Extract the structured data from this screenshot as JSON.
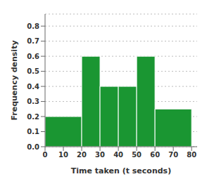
{
  "chart_data": {
    "type": "histogram",
    "bins": [
      0,
      20,
      30,
      40,
      50,
      60,
      80
    ],
    "values": [
      0.2,
      0.6,
      0.4,
      0.4,
      0.6,
      0.25
    ],
    "color": "#1a9632",
    "xlabel": "Time taken (t seconds)",
    "ylabel": "Frequency density",
    "xlim": [
      0,
      83
    ],
    "ylim": [
      0,
      0.88
    ],
    "xticks": [
      0,
      10,
      20,
      30,
      40,
      50,
      60,
      70,
      80
    ],
    "yticks": [
      {
        "value": 0,
        "label": "0.0"
      },
      0.1,
      0.2,
      0.3,
      0.4,
      0.5,
      0.6,
      0.7,
      0.8
    ],
    "grid": true
  }
}
